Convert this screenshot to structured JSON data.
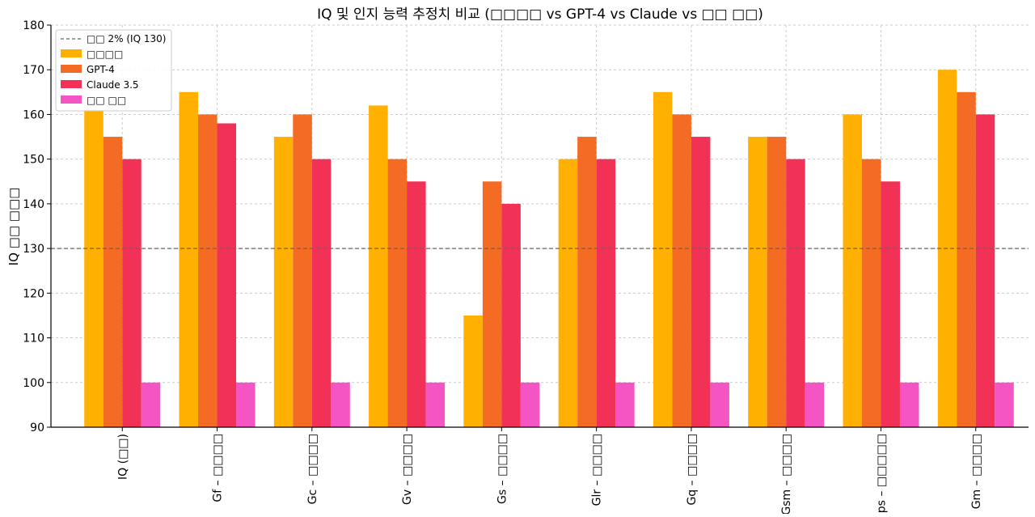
{
  "chart_data": {
    "type": "bar",
    "title": "IQ 및 인지 능력 추정치 비교 (□□□□ vs GPT-4 vs Claude vs □□ □□)",
    "xlabel": "",
    "ylabel": "IQ □□ □□□",
    "ylim": [
      90,
      180
    ],
    "yticks": [
      90,
      100,
      110,
      120,
      130,
      140,
      150,
      160,
      170,
      180
    ],
    "grid": true,
    "legend_position": "top-left",
    "categories": [
      "IQ (□□)",
      "Gf – □□□□",
      "Gc – □□□□",
      "Gv – □□□□",
      "Gs – □□□□",
      "Glr – □□□□",
      "Gq – □□□□",
      "Gsm – □□□□",
      "Gps – □□□□□",
      "Gm – □□□□"
    ],
    "reference_line": {
      "label": "□□ 2% (IQ 130)",
      "value": 130,
      "color": "#666666"
    },
    "series": [
      {
        "name": "□□□□",
        "color": "#FFB000",
        "values": [
          161,
          165,
          155,
          162,
          115,
          150,
          165,
          155,
          160,
          170
        ]
      },
      {
        "name": "GPT-4",
        "color": "#F46B23",
        "values": [
          155,
          160,
          160,
          150,
          145,
          155,
          160,
          155,
          150,
          165
        ]
      },
      {
        "name": "Claude 3.5",
        "color": "#F23157",
        "values": [
          150,
          158,
          150,
          145,
          140,
          150,
          155,
          150,
          145,
          160
        ]
      },
      {
        "name": "□□ □□",
        "color": "#F455C2",
        "values": [
          100,
          100,
          100,
          100,
          100,
          100,
          100,
          100,
          100,
          100
        ]
      }
    ]
  }
}
